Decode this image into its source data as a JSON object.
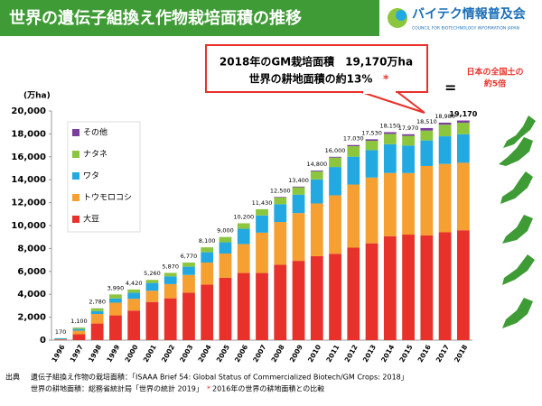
{
  "header": {
    "title": "世界の遺伝子組換え作物栽培面積の推移",
    "logo": "バイテク情報普及会",
    "logo_sub": "COUNCIL FOR BIOTECHNOLOGY INFORMATION JAPAN"
  },
  "chart_data": {
    "type": "stacked_bar",
    "y_label": "(万ha)",
    "categories": [
      "1996",
      "1997",
      "1998",
      "1999",
      "2000",
      "2001",
      "2002",
      "2003",
      "2004",
      "2005",
      "2006",
      "2007",
      "2008",
      "2009",
      "2010",
      "2011",
      "2012",
      "2013",
      "2014",
      "2015",
      "2016",
      "2017",
      "2018"
    ],
    "series": [
      {
        "name": "大豆",
        "color": "#e8312a",
        "values": [
          50,
          510,
          1450,
          2160,
          2580,
          3330,
          3650,
          4140,
          4840,
          5440,
          5860,
          5860,
          6580,
          6920,
          7330,
          7540,
          8070,
          8450,
          9070,
          9210,
          9140,
          9410,
          9590
        ]
      },
      {
        "name": "トウモロコシ",
        "color": "#f5a030",
        "values": [
          30,
          320,
          830,
          1110,
          1030,
          980,
          1240,
          1550,
          1930,
          2120,
          2520,
          3520,
          3730,
          4170,
          4600,
          5100,
          5510,
          5740,
          5520,
          5370,
          6060,
          5970,
          5890
        ]
      },
      {
        "name": "ワタ",
        "color": "#22a9e1",
        "values": [
          80,
          140,
          250,
          370,
          530,
          680,
          680,
          720,
          900,
          980,
          1340,
          1500,
          1550,
          1610,
          2100,
          2470,
          2430,
          2390,
          2510,
          2400,
          2230,
          2410,
          2490
        ]
      },
      {
        "name": "ナタネ",
        "color": "#8cc63e",
        "values": [
          10,
          120,
          240,
          350,
          280,
          270,
          300,
          360,
          430,
          460,
          480,
          550,
          590,
          640,
          700,
          820,
          920,
          820,
          900,
          850,
          860,
          1020,
          1010
        ]
      },
      {
        "name": "その他",
        "color": "#7a3e9d",
        "values": [
          0,
          10,
          10,
          0,
          0,
          0,
          0,
          0,
          0,
          0,
          0,
          0,
          50,
          60,
          70,
          70,
          100,
          130,
          150,
          140,
          220,
          170,
          190
        ]
      }
    ],
    "totals": [
      170,
      {
        "value": 1100,
        "label": "1,100"
      },
      {
        "value": 2780,
        "label": "2,780"
      },
      {
        "value": 3990,
        "label": "3,990"
      },
      {
        "value": 4420,
        "label": "4,420"
      },
      {
        "value": 5260,
        "label": "5,260"
      },
      {
        "value": 5870,
        "label": "5,870"
      },
      {
        "value": 6770,
        "label": "6,770"
      },
      {
        "value": 8100,
        "label": "8,100"
      },
      {
        "value": 9000,
        "label": "9,000"
      },
      {
        "value": 10200,
        "label": "10,200"
      },
      {
        "value": 11430,
        "label": "11,430"
      },
      {
        "value": 12500,
        "label": "12,500"
      },
      {
        "value": 13400,
        "label": "13,400"
      },
      {
        "value": 14800,
        "label": "14,800"
      },
      {
        "value": 16000,
        "label": "16,000"
      },
      {
        "value": 17030,
        "label": "17,030"
      },
      {
        "value": 17530,
        "label": "17,530"
      },
      {
        "value": 18150,
        "label": "18,150"
      },
      {
        "value": 17970,
        "label": "17,970"
      },
      {
        "value": 18510,
        "label": "18,510"
      },
      {
        "value": 18980,
        "label": "18,980"
      },
      {
        "value": 19170,
        "label": "19,170"
      }
    ],
    "ylim": [
      0,
      20000
    ],
    "yticks": [
      0,
      {
        "value": 2000,
        "label": "2,000"
      },
      {
        "value": 4000,
        "label": "4,000"
      },
      {
        "value": 6000,
        "label": "6,000"
      },
      {
        "value": 8000,
        "label": "8,000"
      },
      {
        "value": 10000,
        "label": "10,000"
      },
      {
        "value": 12000,
        "label": "12,000"
      },
      {
        "value": 14000,
        "label": "14,000"
      },
      {
        "value": 16000,
        "label": "16,000"
      },
      {
        "value": 18000,
        "label": "18,000"
      },
      {
        "value": 20000,
        "label": "20,000"
      }
    ],
    "annotations": [
      "2018年のGM栽培面積　19,170万ha",
      "世界の耕地面積の約13%",
      "*",
      "=",
      "日本の全国土の",
      "約5倍"
    ]
  },
  "footer": {
    "source_label": "出典",
    "line1": "遺伝子組換え作物の栽培面積：「ISAAA Brief 54: Global Status of Commercialized Biotech/GM Crops: 2018」",
    "line2": "世界の耕地面積：総務省統計局「世界の統計 2019」",
    "asterisk": "*",
    "line2_note": "2016年の世界の耕地面積との比較"
  }
}
